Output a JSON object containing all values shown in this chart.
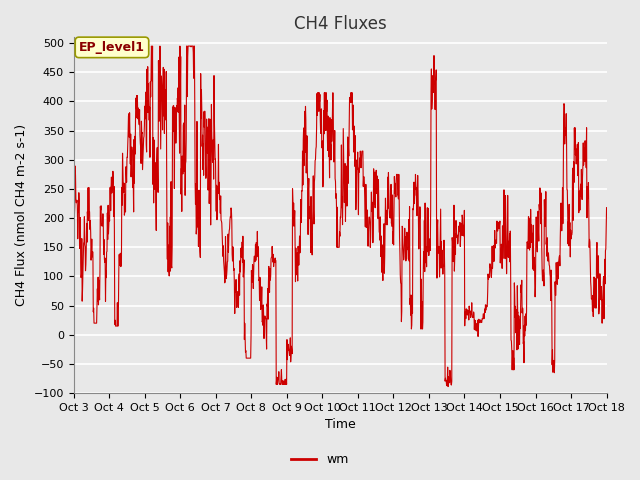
{
  "title": "CH4 Fluxes",
  "xlabel": "Time",
  "ylabel": "CH4 Flux (nmol CH4 m-2 s-1)",
  "ylim": [
    -100,
    510
  ],
  "yticks": [
    -100,
    -50,
    0,
    50,
    100,
    150,
    200,
    250,
    300,
    350,
    400,
    450,
    500
  ],
  "line_color": "#cc0000",
  "line_width": 0.8,
  "plot_bg_color": "#e8e8e8",
  "legend_label": "wm",
  "legend_line_color": "#cc0000",
  "annotation_text": "EP_level1",
  "annotation_bg": "#ffffcc",
  "annotation_border": "#999900",
  "num_points": 1440,
  "title_fontsize": 12,
  "tick_fontsize": 8,
  "ylabel_fontsize": 9
}
